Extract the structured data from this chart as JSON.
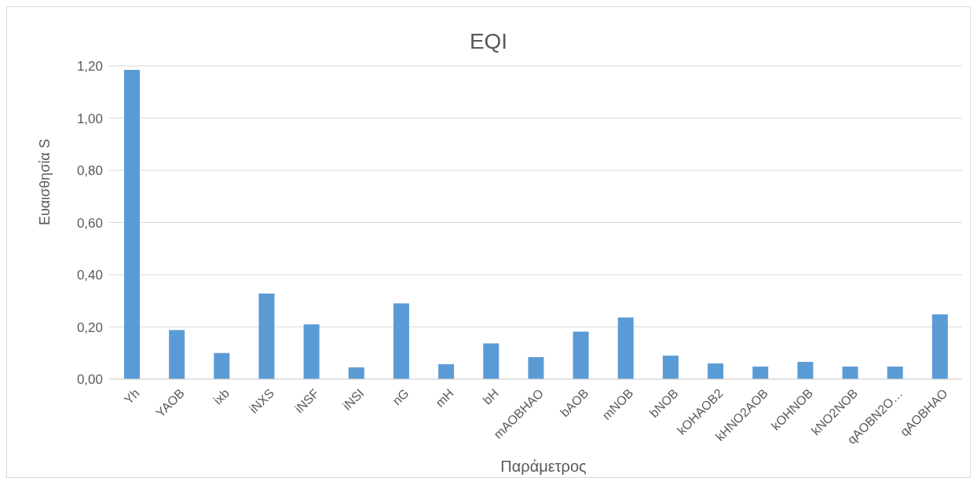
{
  "chart_data": {
    "type": "bar",
    "title": "EQI",
    "xlabel": "Παράμετρος",
    "ylabel": "Ευαισθησία S",
    "categories": [
      "Yh",
      "YAOB",
      "ixb",
      "iNXS",
      "iNSF",
      "iNSI",
      "nG",
      "mH",
      "bH",
      "mAOBHAO",
      "bAOB",
      "mNOB",
      "bNOB",
      "kOHAOB2",
      "kHNO2AOB",
      "kOHNOB",
      "kNO2NOB",
      "qAOBN2O…",
      "qAOBHAO"
    ],
    "values": [
      1.185,
      0.188,
      0.1,
      0.328,
      0.21,
      0.045,
      0.29,
      0.057,
      0.137,
      0.084,
      0.182,
      0.236,
      0.09,
      0.06,
      0.048,
      0.066,
      0.048,
      0.048,
      0.248
    ],
    "color": "#5b9bd5",
    "ylim": [
      0,
      1.2
    ],
    "yticks": [
      {
        "value": 0,
        "label": "0,00"
      },
      {
        "value": 0.2,
        "label": "0,20"
      },
      {
        "value": 0.4,
        "label": "0,40"
      },
      {
        "value": 0.6,
        "label": "0,60"
      },
      {
        "value": 0.8,
        "label": "0,80"
      },
      {
        "value": 1,
        "label": "1,00"
      },
      {
        "value": 1.2,
        "label": "1,20"
      }
    ],
    "grid": "y"
  }
}
